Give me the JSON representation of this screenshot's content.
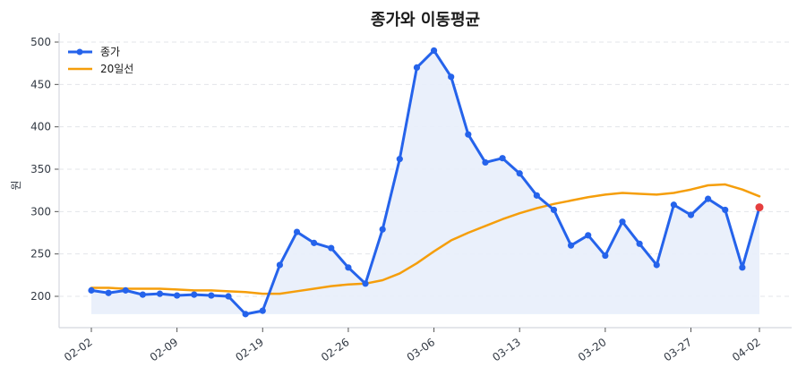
{
  "chart_data": {
    "type": "line",
    "title": "종가와 이동평균",
    "xlabel": "",
    "ylabel": "원",
    "ylim": [
      165,
      510
    ],
    "yticks": [
      200,
      250,
      300,
      350,
      400,
      450,
      500
    ],
    "grid": true,
    "legend_position": "upper left",
    "xtick_labels": [
      {
        "index": 0,
        "label": "02-02"
      },
      {
        "index": 5,
        "label": "02-09"
      },
      {
        "index": 10,
        "label": "02-19"
      },
      {
        "index": 15,
        "label": "02-26"
      },
      {
        "index": 20,
        "label": "03-06"
      },
      {
        "index": 25,
        "label": "03-13"
      },
      {
        "index": 30,
        "label": "03-20"
      },
      {
        "index": 35,
        "label": "03-27"
      },
      {
        "index": 39,
        "label": "04-02"
      }
    ],
    "fill_baseline": 179,
    "series": [
      {
        "name": "종가",
        "color": "#2563eb",
        "marker": "circle",
        "fill": "#e8eefb",
        "values": [
          207,
          204,
          207,
          202,
          203,
          201,
          202,
          201,
          200,
          179,
          183,
          237,
          276,
          263,
          257,
          234,
          215,
          279,
          362,
          470,
          490,
          459,
          391,
          358,
          363,
          345,
          319,
          302,
          260,
          272,
          248,
          288,
          262,
          237,
          308,
          296,
          315,
          302,
          234,
          305
        ],
        "last_point_color": "#e53e3e"
      },
      {
        "name": "20일선",
        "color": "#f59e0b",
        "marker": "none",
        "values": [
          210,
          210,
          209,
          209,
          209,
          208,
          207,
          207,
          206,
          205,
          203,
          203,
          206,
          209,
          212,
          214,
          215,
          219,
          227,
          239,
          253,
          266,
          275,
          283,
          291,
          298,
          304,
          309,
          313,
          317,
          320,
          322,
          321,
          320,
          322,
          326,
          331,
          332,
          326,
          318
        ]
      }
    ]
  },
  "legend": {
    "items": [
      {
        "label": "종가"
      },
      {
        "label": "20일선"
      }
    ]
  }
}
